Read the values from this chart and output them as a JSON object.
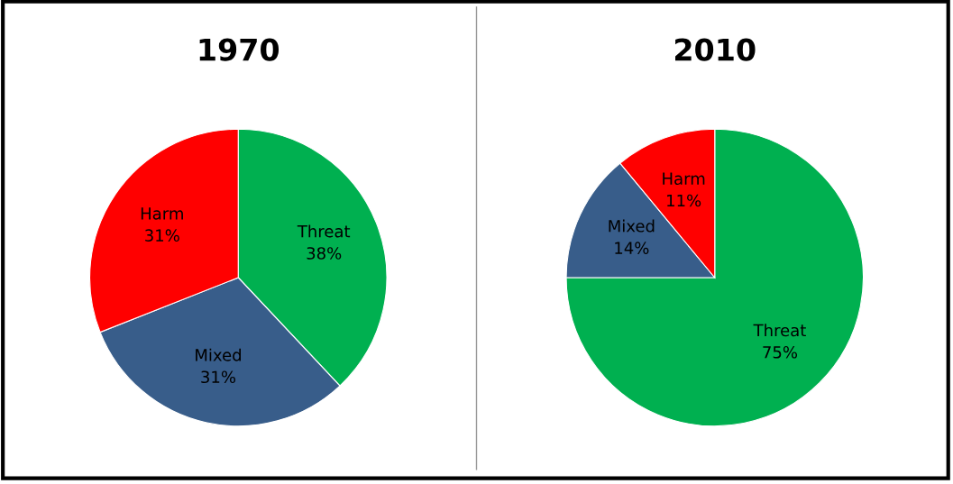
{
  "chart_data": [
    {
      "type": "pie",
      "title": "1970",
      "categories": [
        "Threat",
        "Mixed",
        "Harm"
      ],
      "values": [
        38,
        31,
        31
      ],
      "value_labels": [
        "38%",
        "31%",
        "31%"
      ],
      "colors": [
        "#00b050",
        "#385d8a",
        "#ff0000"
      ]
    },
    {
      "type": "pie",
      "title": "2010",
      "categories": [
        "Threat",
        "Mixed",
        "Harm"
      ],
      "values": [
        75,
        14,
        11
      ],
      "value_labels": [
        "75%",
        "14%",
        "11%"
      ],
      "colors": [
        "#00b050",
        "#385d8a",
        "#ff0000"
      ]
    }
  ]
}
